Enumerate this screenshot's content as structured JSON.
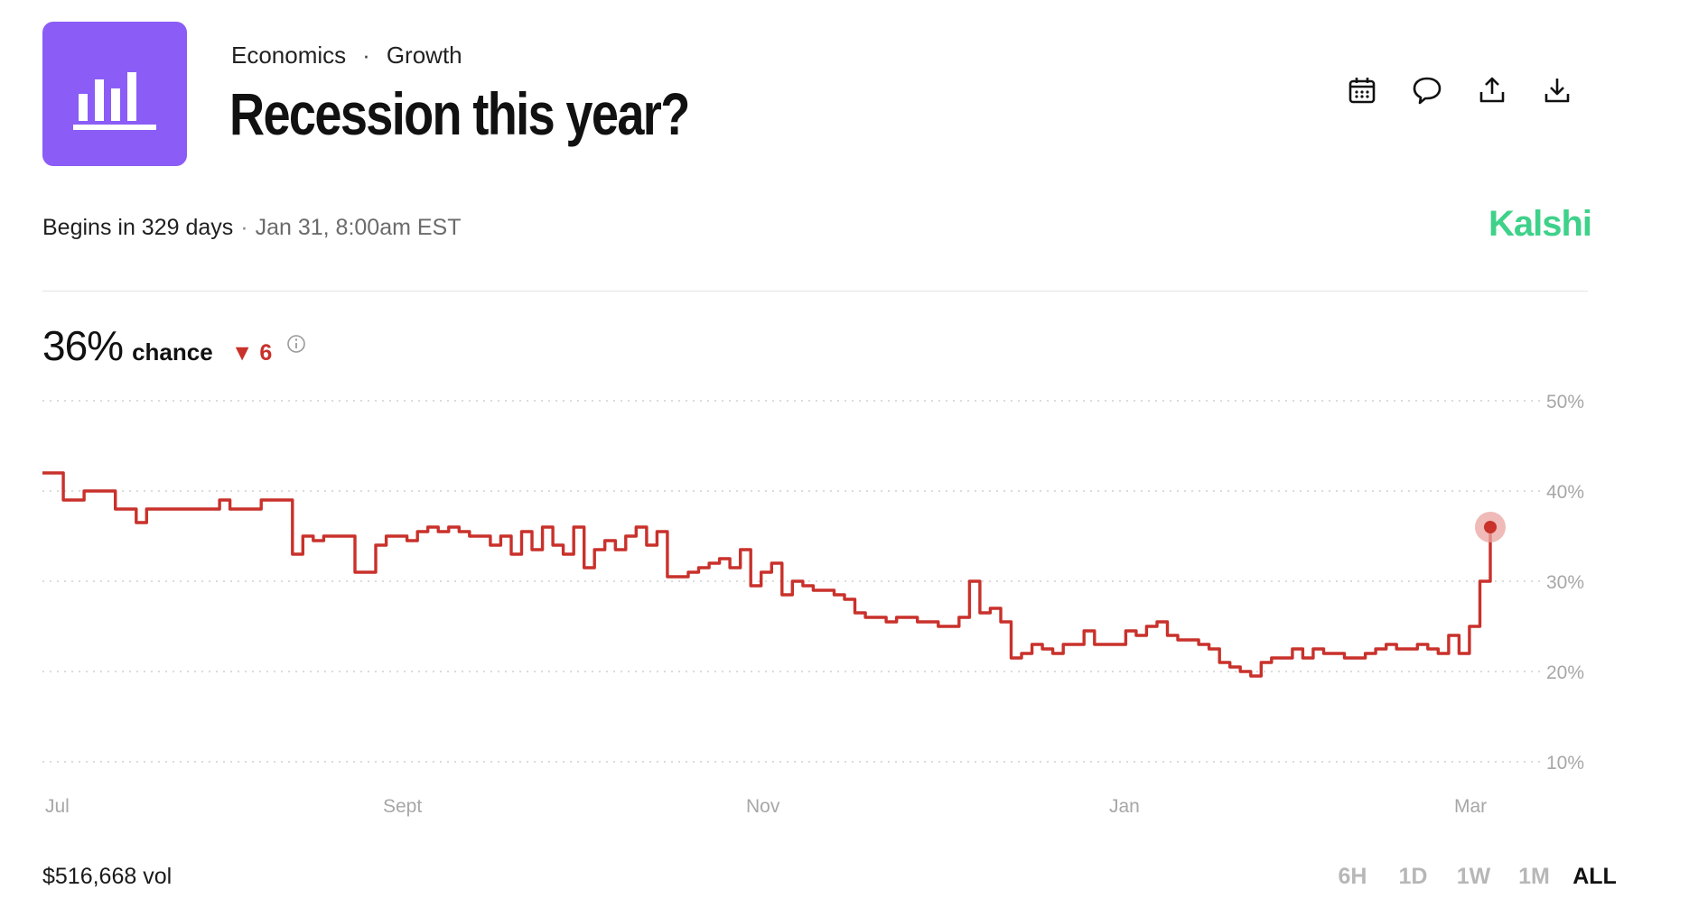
{
  "header": {
    "category": "Economics",
    "separator": "·",
    "subcategory": "Growth",
    "title": "Recession this year?"
  },
  "toolbar": {
    "icons": [
      "calendar-icon",
      "comment-icon",
      "share-icon",
      "download-icon"
    ]
  },
  "status": {
    "begins": "Begins in 329 days",
    "separator": "·",
    "date": "Jan 31, 8:00am EST"
  },
  "brand": {
    "name": "Kalshi",
    "color": "#3fd18a"
  },
  "chance": {
    "value": "36%",
    "label": "chance",
    "delta_arrow": "▼",
    "delta": "6",
    "delta_color": "#c9312b"
  },
  "chart_data": {
    "type": "line",
    "title": "",
    "xlabel": "",
    "ylabel": "",
    "y_ticks": [
      "50%",
      "40%",
      "30%",
      "20%",
      "10%"
    ],
    "y_tick_values": [
      50,
      40,
      30,
      20,
      10
    ],
    "x_ticks": [
      "Jul",
      "Sept",
      "Nov",
      "Jan",
      "Mar"
    ],
    "ylim": [
      10,
      50
    ],
    "grid": true,
    "series": [
      {
        "color": "#c9312b",
        "values": [
          42,
          42,
          39,
          39,
          40,
          40,
          40,
          38,
          38,
          36.5,
          38,
          38,
          38,
          38,
          38,
          38,
          38,
          39,
          38,
          38,
          38,
          39,
          39,
          39,
          33,
          35,
          34.5,
          35,
          35,
          35,
          31,
          31,
          34,
          35,
          35,
          34.5,
          35.5,
          36,
          35.5,
          36,
          35.5,
          35,
          35,
          34,
          35,
          33,
          35.5,
          33.5,
          36,
          34,
          33,
          36,
          31.5,
          33.5,
          34.5,
          33.5,
          35,
          36,
          34,
          35.5,
          30.5,
          30.5,
          31,
          31.5,
          32,
          32.5,
          31.5,
          33.5,
          29.5,
          31,
          32,
          28.5,
          30,
          29.5,
          29,
          29,
          28.5,
          28,
          26.5,
          26,
          26,
          25.5,
          26,
          26,
          25.5,
          25.5,
          25,
          25,
          26,
          30,
          26.5,
          27,
          25.5,
          21.5,
          22,
          23,
          22.5,
          22,
          23,
          23,
          24.5,
          23,
          23,
          23,
          24.5,
          24,
          25,
          25.5,
          24,
          23.5,
          23.5,
          23,
          22.5,
          21,
          20.5,
          20,
          19.5,
          21,
          21.5,
          21.5,
          22.5,
          21.5,
          22.5,
          22,
          22,
          21.5,
          21.5,
          22,
          22.5,
          23,
          22.5,
          22.5,
          23,
          22.5,
          22,
          24,
          22,
          25,
          30,
          36
        ]
      }
    ],
    "current_value": 36
  },
  "footer": {
    "volume": "$516,668 vol",
    "ranges": [
      "6H",
      "1D",
      "1W",
      "1M",
      "ALL"
    ],
    "active_range": "ALL"
  }
}
